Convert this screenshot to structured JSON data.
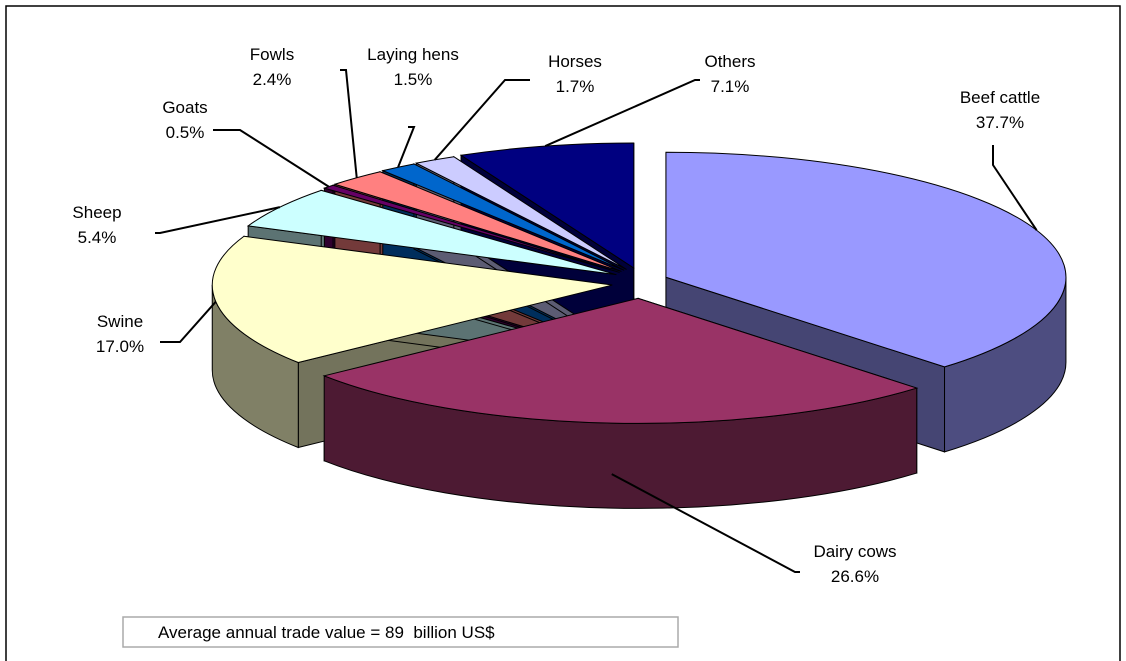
{
  "chart_data": {
    "type": "pie",
    "categories": [
      "Beef cattle",
      "Dairy cows",
      "Swine",
      "Sheep",
      "Goats",
      "Fowls",
      "Laying hens",
      "Horses",
      "Others"
    ],
    "values": [
      37.7,
      26.6,
      17.0,
      5.4,
      0.5,
      2.4,
      1.5,
      1.7,
      7.1
    ],
    "value_labels": [
      "37.7%",
      "26.6%",
      "17.0%",
      "5.4%",
      "0.5%",
      "2.4%",
      "1.5%",
      "1.7%",
      "7.1%"
    ],
    "colors": [
      "#9999ff",
      "#993366",
      "#ffffcc",
      "#ccffff",
      "#660066",
      "#ff8080",
      "#0066cc",
      "#ccccff",
      "#000080"
    ],
    "annotation": "Average annual trade value = 89  billion US$"
  }
}
